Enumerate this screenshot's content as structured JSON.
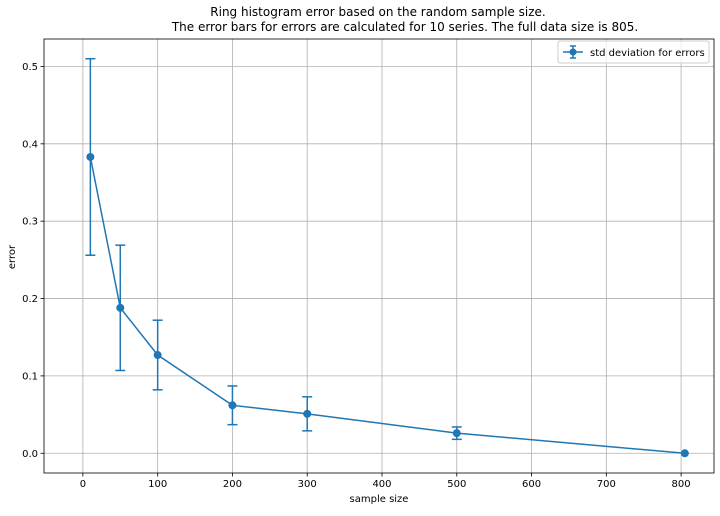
{
  "chart_data": {
    "type": "line",
    "title_lines": [
      "Ring histogram error based on the random sample size.",
      "The error bars for errors  are calculated for 10 series. The full data size is 805."
    ],
    "xlabel": "sample size",
    "ylabel": "error",
    "xlim": [
      -52,
      844
    ],
    "ylim": [
      -0.0255,
      0.5355
    ],
    "x_ticks": [
      0,
      100,
      200,
      300,
      400,
      500,
      600,
      700,
      800
    ],
    "y_ticks": [
      0.0,
      0.1,
      0.2,
      0.3,
      0.4,
      0.5
    ],
    "x_tick_labels": [
      "0",
      "100",
      "200",
      "300",
      "400",
      "500",
      "600",
      "700",
      "800"
    ],
    "y_tick_labels": [
      "0.0",
      "0.1",
      "0.2",
      "0.3",
      "0.4",
      "0.5"
    ],
    "grid": true,
    "legend_position": "top-right",
    "series": [
      {
        "name": "std deviation for errors",
        "color": "#1f77b4",
        "marker": "circle",
        "x": [
          10,
          50,
          100,
          200,
          300,
          500,
          805
        ],
        "y": [
          0.383,
          0.188,
          0.127,
          0.062,
          0.051,
          0.026,
          0.0
        ],
        "err": [
          0.127,
          0.081,
          0.045,
          0.025,
          0.022,
          0.008,
          0.0
        ]
      }
    ]
  }
}
